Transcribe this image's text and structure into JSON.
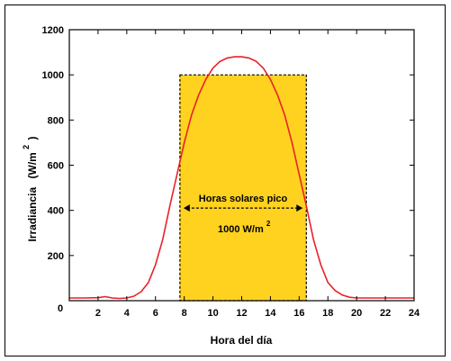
{
  "chart_data": {
    "type": "line",
    "xlabel": "Hora del día",
    "ylabel": "Irradiancia",
    "ylabel_unit_base": "(W/m",
    "ylabel_unit_exp": "2",
    "ylabel_unit_close": ")",
    "xlim": [
      0,
      24
    ],
    "ylim": [
      0,
      1200
    ],
    "xticks": [
      2,
      4,
      6,
      8,
      10,
      12,
      14,
      16,
      18,
      20,
      22,
      24
    ],
    "yticks": [
      0,
      200,
      400,
      600,
      800,
      1000,
      1200
    ],
    "grid": false,
    "series": [
      {
        "color": "#e8212a",
        "x": [
          0,
          1,
          2,
          2.5,
          3,
          3.5,
          4,
          4.5,
          5,
          5.5,
          6,
          6.5,
          7,
          7.5,
          8,
          8.5,
          9,
          9.5,
          10,
          10.5,
          11,
          11.5,
          12,
          12.5,
          13,
          13.5,
          14,
          14.5,
          15,
          15.5,
          16,
          16.5,
          17,
          17.5,
          18,
          18.5,
          19,
          19.5,
          20,
          21,
          22,
          23,
          24
        ],
        "y": [
          12,
          12,
          13,
          18,
          12,
          10,
          12,
          20,
          40,
          80,
          160,
          270,
          420,
          560,
          700,
          820,
          910,
          980,
          1030,
          1060,
          1075,
          1080,
          1080,
          1075,
          1060,
          1030,
          980,
          910,
          820,
          700,
          560,
          420,
          270,
          160,
          80,
          45,
          25,
          15,
          12,
          12,
          12,
          12,
          12
        ]
      }
    ],
    "rect": {
      "x_start": 7.7,
      "x_end": 16.5,
      "y_top": 1000,
      "fill": "#ffd21f"
    },
    "annotation": {
      "title": "Horas solares pico",
      "value_base": "1000 W/m",
      "value_exp": "2",
      "arrow_y": 410
    }
  }
}
